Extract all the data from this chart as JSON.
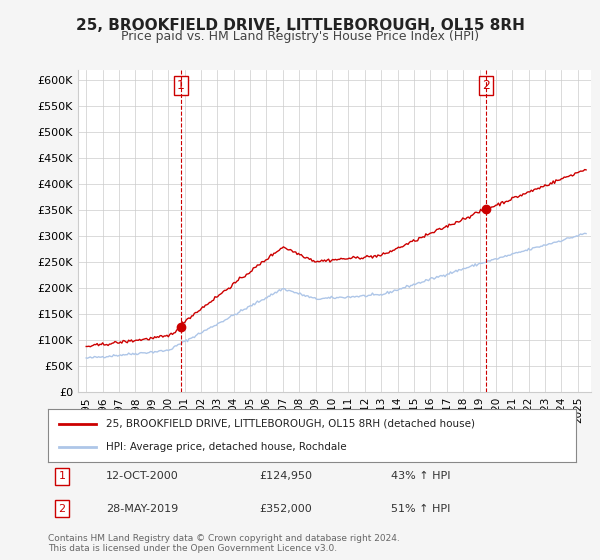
{
  "title": "25, BROOKFIELD DRIVE, LITTLEBOROUGH, OL15 8RH",
  "subtitle": "Price paid vs. HM Land Registry's House Price Index (HPI)",
  "ylabel_ticks": [
    "£0",
    "£50K",
    "£100K",
    "£150K",
    "£200K",
    "£250K",
    "£300K",
    "£350K",
    "£400K",
    "£450K",
    "£500K",
    "£550K",
    "£600K"
  ],
  "ylim": [
    0,
    620000
  ],
  "ytick_vals": [
    0,
    50000,
    100000,
    150000,
    200000,
    250000,
    300000,
    350000,
    400000,
    450000,
    500000,
    550000,
    600000
  ],
  "sale1_date_label": "12-OCT-2000",
  "sale1_price": 124950,
  "sale1_hpi_change": "43% ↑ HPI",
  "sale1_x": 2000.78,
  "sale2_date_label": "28-MAY-2019",
  "sale2_price": 352000,
  "sale2_hpi_change": "51% ↑ HPI",
  "sale2_x": 2019.38,
  "legend_label1": "25, BROOKFIELD DRIVE, LITTLEBOROUGH, OL15 8RH (detached house)",
  "legend_label2": "HPI: Average price, detached house, Rochdale",
  "footnote": "Contains HM Land Registry data © Crown copyright and database right 2024.\nThis data is licensed under the Open Government Licence v3.0.",
  "hpi_color": "#aec6e8",
  "price_color": "#cc0000",
  "vline_color": "#cc0000",
  "bg_color": "#f5f5f5",
  "plot_bg_color": "#ffffff",
  "grid_color": "#cccccc"
}
